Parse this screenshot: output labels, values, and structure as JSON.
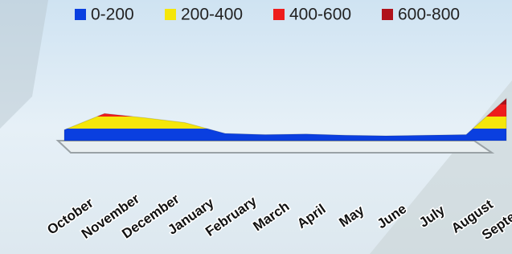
{
  "chart_data": {
    "type": "surface",
    "categories": [
      "October",
      "November",
      "December",
      "January",
      "February",
      "March",
      "April",
      "May",
      "June",
      "July",
      "August",
      "September"
    ],
    "values": [
      180,
      450,
      380,
      300,
      120,
      100,
      110,
      90,
      80,
      90,
      100,
      700
    ],
    "ylim": [
      0,
      800
    ],
    "bands": [
      {
        "label": "0-200",
        "color": "#0a3fe0"
      },
      {
        "label": "200-400",
        "color": "#f5e60a"
      },
      {
        "label": "400-600",
        "color": "#ee1c1c"
      },
      {
        "label": "600-800",
        "color": "#b0121a"
      }
    ]
  }
}
